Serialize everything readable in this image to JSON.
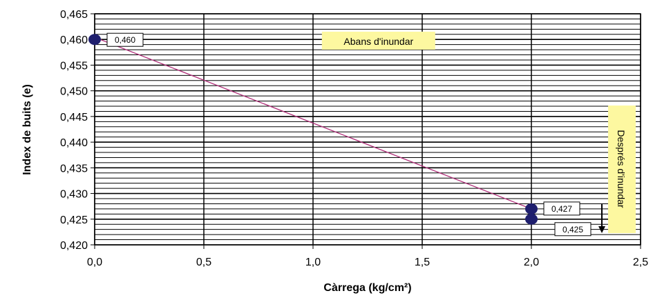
{
  "chart_data": {
    "type": "line",
    "title": "",
    "xlabel": "Càrrega (kg/cm²)",
    "ylabel": "Index de buits (e)",
    "xlim": [
      0,
      2.5
    ],
    "ylim": [
      0.42,
      0.465
    ],
    "x_ticks": [
      "0,0",
      "0,5",
      "1,0",
      "1,5",
      "2,0",
      "2,5"
    ],
    "y_ticks": [
      "0,420",
      "0,425",
      "0,430",
      "0,435",
      "0,440",
      "0,445",
      "0,450",
      "0,455",
      "0,460",
      "0,465"
    ],
    "grid": true,
    "line_color": "#b0307a",
    "marker_color": "#1f1f6e",
    "series": [
      {
        "x": [
          0.0,
          2.0,
          2.0
        ],
        "y": [
          0.46,
          0.427,
          0.425
        ],
        "labels": [
          "0,460",
          "0,427",
          "0,425"
        ]
      }
    ],
    "annotations": [
      {
        "text": "Abans d'inundar",
        "x": 1.3,
        "y": 0.4595
      },
      {
        "text": "Després d'inundar",
        "orientation": "vertical"
      }
    ]
  }
}
